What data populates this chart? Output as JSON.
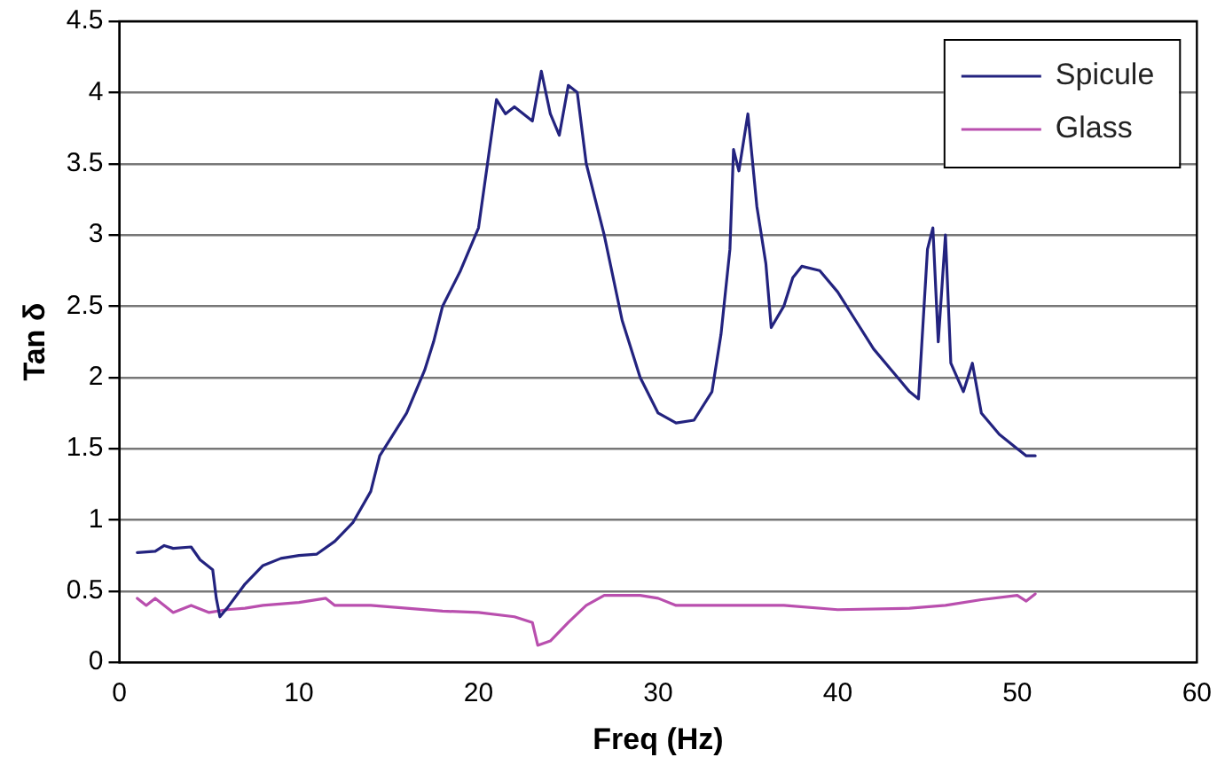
{
  "chart_data": {
    "type": "line",
    "xlabel": "Freq (Hz)",
    "ylabel": "Tan δ",
    "xlim": [
      0,
      60
    ],
    "xticks": [
      0,
      10,
      20,
      30,
      40,
      50,
      60
    ],
    "ylim": [
      0,
      4.5
    ],
    "yticks": [
      0,
      0.5,
      1,
      1.5,
      2,
      2.5,
      3,
      3.5,
      4,
      4.5
    ],
    "grid": "y",
    "legend": "top right",
    "marker": "none",
    "line_style": "solid",
    "series": [
      {
        "name": "Spicule",
        "color": "#23237f",
        "x": [
          1,
          2,
          2.5,
          3,
          4,
          4.5,
          5.2,
          5.4,
          5.6,
          6,
          7,
          8,
          9,
          10,
          11,
          12,
          13,
          14,
          14.5,
          15,
          16,
          17,
          17.5,
          18,
          19,
          20,
          20.5,
          21,
          21.5,
          22,
          23,
          23.5,
          24,
          24.5,
          25,
          25.5,
          26,
          27,
          28,
          29,
          30,
          31,
          32,
          33,
          33.5,
          34,
          34.2,
          34.5,
          35,
          35.5,
          36,
          36.3,
          37,
          37.5,
          38,
          39,
          40,
          41,
          42,
          43,
          44,
          44.5,
          45,
          45.3,
          45.6,
          46,
          46.3,
          47,
          47.5,
          48,
          49,
          50,
          50.5,
          51
        ],
        "values": [
          0.77,
          0.78,
          0.82,
          0.8,
          0.81,
          0.72,
          0.65,
          0.45,
          0.32,
          0.38,
          0.55,
          0.68,
          0.73,
          0.75,
          0.76,
          0.85,
          0.98,
          1.2,
          1.45,
          1.55,
          1.75,
          2.05,
          2.25,
          2.5,
          2.75,
          3.05,
          3.5,
          3.95,
          3.85,
          3.9,
          3.8,
          4.15,
          3.85,
          3.7,
          4.05,
          4.0,
          3.5,
          3.0,
          2.4,
          2.0,
          1.75,
          1.68,
          1.7,
          1.9,
          2.3,
          2.9,
          3.6,
          3.45,
          3.85,
          3.2,
          2.8,
          2.35,
          2.5,
          2.7,
          2.78,
          2.75,
          2.6,
          2.4,
          2.2,
          2.05,
          1.9,
          1.85,
          2.9,
          3.05,
          2.25,
          3.0,
          2.1,
          1.9,
          2.1,
          1.75,
          1.6,
          1.5,
          1.45,
          1.45
        ]
      },
      {
        "name": "Glass",
        "color": "#b94fae",
        "x": [
          1,
          1.5,
          2,
          3,
          4,
          5,
          6,
          7,
          8,
          10,
          11.5,
          12,
          14,
          16,
          18,
          20,
          22,
          23,
          23.3,
          24,
          25,
          26,
          27,
          29,
          30,
          31,
          35,
          37,
          40,
          44,
          46,
          48,
          50,
          50.5,
          51
        ],
        "values": [
          0.45,
          0.4,
          0.45,
          0.35,
          0.4,
          0.35,
          0.37,
          0.38,
          0.4,
          0.42,
          0.45,
          0.4,
          0.4,
          0.38,
          0.36,
          0.35,
          0.32,
          0.28,
          0.12,
          0.15,
          0.28,
          0.4,
          0.47,
          0.47,
          0.45,
          0.4,
          0.4,
          0.4,
          0.37,
          0.38,
          0.4,
          0.44,
          0.47,
          0.43,
          0.48
        ]
      }
    ]
  }
}
